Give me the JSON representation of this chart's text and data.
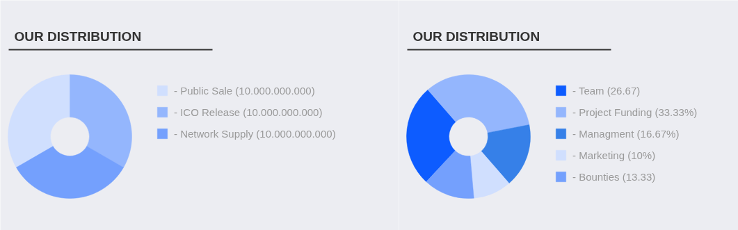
{
  "chart_data": [
    {
      "type": "donut",
      "title": "OUR DISTRIBUTION",
      "categories": [
        "- Public Sale (10.000.000.000)",
        "- ICO Release (10.000.000.000)",
        "- Network Supply (10.000.000.000)"
      ],
      "values": [
        10000000000,
        10000000000,
        10000000000
      ],
      "colors": [
        "#d0dffe",
        "#94b6fd",
        "#74a0fd"
      ],
      "legend": "right"
    },
    {
      "type": "donut",
      "title": "OUR DISTRIBUTION",
      "categories": [
        "- Team (26.67)",
        "- Project Funding (33.33%)",
        "- Managment (16.67%)",
        "- Marketing (10%)",
        "- Bounties (13.33)"
      ],
      "values": [
        26.67,
        33.33,
        16.67,
        10,
        13.33
      ],
      "colors": [
        "#0d5cff",
        "#94b6fd",
        "#3680e8",
        "#d0dffe",
        "#74a0fd"
      ],
      "legend": "right"
    }
  ]
}
